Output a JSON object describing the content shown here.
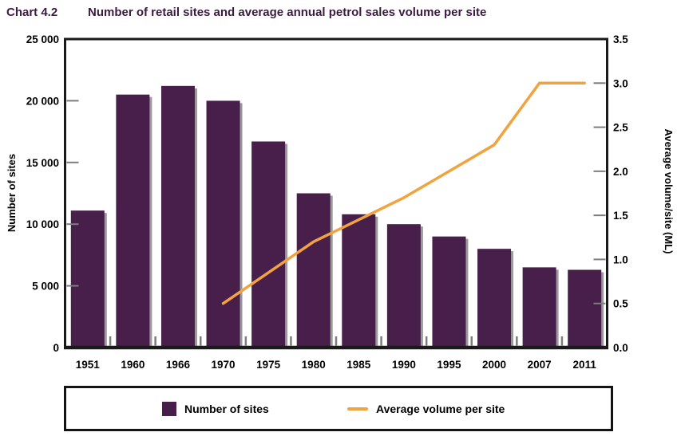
{
  "header": {
    "chart_label": "Chart 4.2",
    "title": "Number of retail sites and average annual petrol sales volume per site"
  },
  "colors": {
    "bar": "#481f4b",
    "bar_shadow": "#9b9b9b",
    "line": "#f0a33f",
    "title_text": "#3d1a42",
    "axis": "#1a1a1a",
    "tick": "#7d7d7d",
    "label_text": "#000000"
  },
  "chart_data": {
    "type": "bar",
    "title": "Number of retail sites and average annual petrol sales volume per site",
    "categories": [
      "1951",
      "1960",
      "1966",
      "1970",
      "1975",
      "1980",
      "1985",
      "1990",
      "1995",
      "2000",
      "2007",
      "2011"
    ],
    "series": [
      {
        "name": "Number of sites",
        "type": "bar",
        "axis": "left",
        "values": [
          11100,
          20500,
          21200,
          20000,
          16700,
          12500,
          10800,
          10000,
          9000,
          8000,
          6500,
          6300
        ]
      },
      {
        "name": "Average volume per site",
        "type": "line",
        "axis": "right",
        "values": [
          null,
          null,
          null,
          0.5,
          0.85,
          1.2,
          1.45,
          1.7,
          2.0,
          2.3,
          3.0,
          3.0
        ]
      }
    ],
    "left_axis": {
      "label": "Number of sites",
      "min": 0,
      "max": 25000,
      "tick_labels": [
        "25 000",
        "20 000",
        "15 000",
        "10 000",
        "5 000",
        "0"
      ]
    },
    "right_axis": {
      "label": "Average volume/site (ML)",
      "min": 0,
      "max": 3.5,
      "tick_labels": [
        "3.5",
        "3.0",
        "2.5",
        "2.0",
        "1.5",
        "1.0",
        "0.5",
        "0.0"
      ]
    },
    "legend": [
      {
        "label": "Number of sites",
        "swatch": "bar"
      },
      {
        "label": "Average volume per site",
        "swatch": "line"
      }
    ],
    "grid": "inner tick marks only",
    "legend_position": "bottom"
  }
}
